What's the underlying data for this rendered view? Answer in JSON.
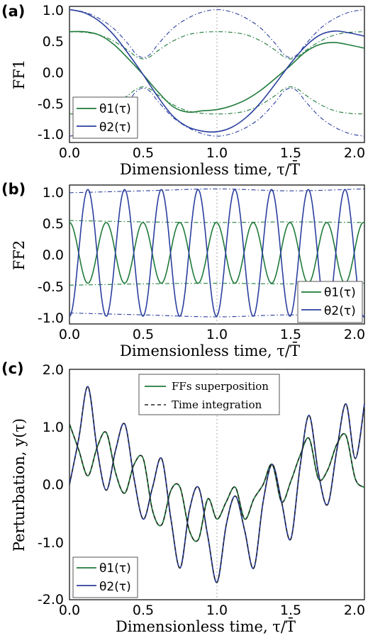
{
  "colors": {
    "theta1": "#1f7a3a",
    "theta2": "#2b3f9e",
    "integration": "#222222",
    "marker": "#aaaaaa"
  },
  "chart_data": [
    {
      "panel": "(a)",
      "type": "line",
      "xlabel": "Dimensionless time, τ/T̄",
      "ylabel": "FF1",
      "xlim": [
        0.0,
        2.0
      ],
      "ylim": [
        -1.1,
        1.05
      ],
      "xticks": [
        "0.0",
        "0.5",
        "1.0",
        "1.5",
        "2.0"
      ],
      "yticks": [
        "1.0",
        "0.5",
        "0.0",
        "-0.5",
        "-1.0"
      ],
      "legend": {
        "placement": "lower-left",
        "entries": [
          "θ1(τ)",
          "θ2(τ)"
        ]
      },
      "series": [
        {
          "name": "θ1(τ)",
          "x": [
            0.0,
            0.1,
            0.2,
            0.3,
            0.4,
            0.5,
            0.6,
            0.7,
            0.8,
            0.9,
            1.0,
            1.1,
            1.2,
            1.3,
            1.4,
            1.5,
            1.6,
            1.7,
            1.8,
            1.9,
            2.0
          ],
          "y": [
            0.65,
            0.65,
            0.6,
            0.45,
            0.22,
            -0.03,
            -0.3,
            -0.53,
            -0.62,
            -0.6,
            -0.58,
            -0.52,
            -0.42,
            -0.27,
            -0.08,
            0.12,
            0.33,
            0.45,
            0.48,
            0.44,
            0.39
          ]
        },
        {
          "name": "θ2(τ)",
          "x": [
            0.0,
            0.1,
            0.2,
            0.3,
            0.4,
            0.5,
            0.6,
            0.7,
            0.8,
            0.9,
            1.0,
            1.1,
            1.2,
            1.3,
            1.4,
            1.5,
            1.6,
            1.7,
            1.8,
            1.9,
            2.0
          ],
          "y": [
            1.0,
            0.95,
            0.82,
            0.6,
            0.3,
            -0.03,
            -0.38,
            -0.68,
            -0.85,
            -0.92,
            -0.93,
            -0.86,
            -0.7,
            -0.46,
            -0.16,
            0.15,
            0.42,
            0.6,
            0.66,
            0.63,
            0.58
          ]
        },
        {
          "name": "",
          "style": "dashdot",
          "color": "theta2",
          "x": [
            0.0,
            0.1,
            0.2,
            0.3,
            0.4,
            0.45,
            0.5,
            0.55,
            0.6,
            0.7,
            0.8,
            0.9,
            1.0,
            1.1,
            1.2,
            1.3,
            1.4,
            1.45,
            1.5,
            1.55,
            1.6,
            1.7,
            1.8,
            1.9,
            2.0
          ],
          "y": [
            1.0,
            0.96,
            0.86,
            0.7,
            0.45,
            0.3,
            0.24,
            0.3,
            0.45,
            0.7,
            0.86,
            0.96,
            1.0,
            0.96,
            0.86,
            0.7,
            0.45,
            0.3,
            0.24,
            0.3,
            0.45,
            0.7,
            0.86,
            0.96,
            1.0
          ]
        },
        {
          "name": "",
          "style": "dashdot",
          "color": "theta2",
          "x": [
            0.0,
            0.1,
            0.2,
            0.3,
            0.4,
            0.45,
            0.5,
            0.55,
            0.6,
            0.7,
            0.8,
            0.9,
            1.0,
            1.1,
            1.2,
            1.3,
            1.4,
            1.45,
            1.5,
            1.55,
            1.6,
            1.7,
            1.8,
            1.9,
            2.0
          ],
          "y": [
            -1.0,
            -0.96,
            -0.86,
            -0.7,
            -0.45,
            -0.3,
            -0.24,
            -0.3,
            -0.45,
            -0.7,
            -0.86,
            -0.96,
            -1.0,
            -0.96,
            -0.86,
            -0.7,
            -0.45,
            -0.3,
            -0.24,
            -0.3,
            -0.45,
            -0.7,
            -0.86,
            -0.96,
            -1.0
          ]
        },
        {
          "name": "",
          "style": "dashdot",
          "color": "theta1",
          "x": [
            0.0,
            0.1,
            0.2,
            0.3,
            0.4,
            0.45,
            0.5,
            0.55,
            0.6,
            0.7,
            0.8,
            0.9,
            1.0,
            1.1,
            1.2,
            1.3,
            1.4,
            1.45,
            1.5,
            1.55,
            1.6,
            1.7,
            1.8,
            1.9,
            2.0
          ],
          "y": [
            0.65,
            0.64,
            0.6,
            0.5,
            0.35,
            0.26,
            0.22,
            0.26,
            0.35,
            0.5,
            0.6,
            0.64,
            0.65,
            0.64,
            0.6,
            0.5,
            0.35,
            0.26,
            0.22,
            0.26,
            0.35,
            0.5,
            0.6,
            0.64,
            0.65
          ]
        },
        {
          "name": "",
          "style": "dashdot",
          "color": "theta1",
          "x": [
            0.0,
            0.1,
            0.2,
            0.3,
            0.4,
            0.45,
            0.5,
            0.55,
            0.6,
            0.7,
            0.8,
            0.9,
            1.0,
            1.1,
            1.2,
            1.3,
            1.4,
            1.45,
            1.5,
            1.55,
            1.6,
            1.7,
            1.8,
            1.9,
            2.0
          ],
          "y": [
            -0.65,
            -0.64,
            -0.6,
            -0.5,
            -0.35,
            -0.26,
            -0.22,
            -0.26,
            -0.35,
            -0.5,
            -0.6,
            -0.64,
            -0.65,
            -0.64,
            -0.6,
            -0.5,
            -0.35,
            -0.26,
            -0.22,
            -0.26,
            -0.35,
            -0.5,
            -0.6,
            -0.64,
            -0.65
          ]
        }
      ]
    },
    {
      "panel": "(b)",
      "type": "line",
      "xlabel": "Dimensionless time, τ/T̄",
      "ylabel": "FF2",
      "xlim": [
        0.0,
        2.0
      ],
      "ylim": [
        -1.1,
        1.05
      ],
      "xticks": [
        "0.0",
        "0.5",
        "1.0",
        "1.5",
        "2.0"
      ],
      "yticks": [
        "1.0",
        "0.5",
        "0.0",
        "-0.5",
        "-1.0"
      ],
      "legend": {
        "placement": "lower-right",
        "entries": [
          "θ1(τ)",
          "θ2(τ)"
        ]
      },
      "oscillation": {
        "period": 0.2491,
        "theta1_amplitude": 0.47,
        "theta1_start": 0.5,
        "theta2_amplitude": 0.98,
        "theta2_start": -0.98
      },
      "envelopes": [
        {
          "color": "theta2",
          "x": [
            0.0,
            0.5,
            1.0,
            1.5,
            2.0
          ],
          "y": [
            0.93,
            0.96,
            0.99,
            0.96,
            0.99
          ]
        },
        {
          "color": "theta2",
          "x": [
            0.0,
            0.5,
            1.0,
            1.5,
            2.0
          ],
          "y": [
            -0.93,
            -0.96,
            -0.99,
            -0.96,
            -0.99
          ]
        },
        {
          "color": "theta1",
          "x": [
            0.0,
            0.5,
            1.0,
            1.5,
            2.0
          ],
          "y": [
            0.5,
            0.48,
            0.47,
            0.48,
            0.47
          ]
        },
        {
          "color": "theta1",
          "x": [
            0.0,
            0.5,
            1.0,
            1.5,
            2.0
          ],
          "y": [
            -0.5,
            -0.48,
            -0.47,
            -0.48,
            -0.47
          ]
        }
      ]
    },
    {
      "panel": "(c)",
      "type": "line",
      "xlabel": "Dimensionless time, τ/T̄",
      "ylabel": "Perturbation, y(τ)",
      "xlim": [
        0.0,
        2.0
      ],
      "ylim": [
        -2.0,
        2.0
      ],
      "xticks": [
        "0.0",
        "0.5",
        "1.0",
        "1.5",
        "2.0"
      ],
      "yticks": [
        "2.0",
        "1.0",
        "0.0",
        "-1.0",
        "-2.0"
      ],
      "legend_top": {
        "placement": "upper-center",
        "entries": [
          "FFs superposition",
          "Time integration"
        ]
      },
      "legend_bottom": {
        "placement": "lower-left",
        "entries": [
          "θ1(τ)",
          "θ2(τ)"
        ]
      },
      "series": [
        {
          "name": "θ1(τ)",
          "x": [
            0.0,
            0.063,
            0.125,
            0.188,
            0.25,
            0.313,
            0.375,
            0.438,
            0.5,
            0.563,
            0.625,
            0.688,
            0.75,
            0.813,
            0.875,
            0.938,
            1.0,
            1.063,
            1.125,
            1.188,
            1.25,
            1.313,
            1.375,
            1.438,
            1.5,
            1.563,
            1.625,
            1.688,
            1.75,
            1.813,
            1.875,
            1.938,
            2.0
          ],
          "y": [
            1.05,
            0.6,
            0.15,
            0.65,
            0.9,
            0.2,
            -0.15,
            0.35,
            0.45,
            -0.45,
            -0.7,
            -0.1,
            -0.05,
            -0.8,
            -0.95,
            -0.25,
            -0.6,
            -0.3,
            -0.05,
            -0.6,
            -0.25,
            0.0,
            0.35,
            -0.3,
            0.05,
            0.5,
            0.8,
            0.1,
            0.25,
            0.7,
            0.85,
            0.1,
            -0.05
          ]
        },
        {
          "name": "θ2(τ)",
          "x": [
            0.0,
            0.063,
            0.125,
            0.188,
            0.25,
            0.313,
            0.375,
            0.438,
            0.5,
            0.563,
            0.625,
            0.688,
            0.75,
            0.813,
            0.875,
            0.938,
            1.0,
            1.063,
            1.125,
            1.188,
            1.25,
            1.313,
            1.375,
            1.438,
            1.5,
            1.563,
            1.625,
            1.688,
            1.75,
            1.813,
            1.875,
            1.938,
            2.0
          ],
          "y": [
            0.0,
            0.8,
            1.7,
            0.6,
            -0.1,
            0.6,
            1.05,
            0.1,
            -0.6,
            -0.05,
            0.45,
            -0.6,
            -1.45,
            -0.45,
            -0.05,
            -0.9,
            -1.7,
            -0.7,
            -0.2,
            -0.8,
            -1.45,
            -0.3,
            0.35,
            -0.3,
            -0.95,
            0.3,
            1.2,
            0.2,
            -0.35,
            0.6,
            1.4,
            0.45,
            1.4
          ]
        }
      ]
    }
  ]
}
